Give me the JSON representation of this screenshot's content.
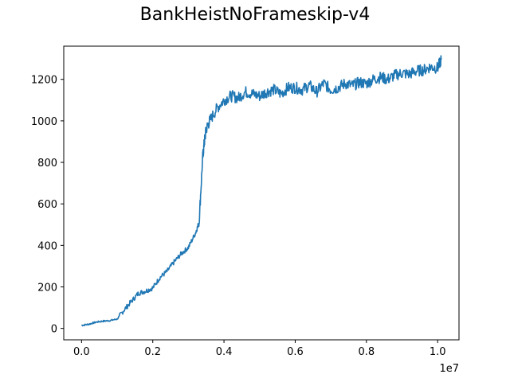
{
  "chart_data": {
    "type": "line",
    "title": "BankHeistNoFrameskip-v4",
    "xlabel": "",
    "ylabel": "",
    "x_offset_label": "1e7",
    "xlim": [
      -0.05,
      1.06
    ],
    "ylim": [
      -55,
      1360
    ],
    "x_ticks": [
      0.0,
      0.2,
      0.4,
      0.6,
      0.8,
      1.0
    ],
    "x_tick_labels": [
      "0.0",
      "0.2",
      "0.4",
      "0.6",
      "0.8",
      "1.0"
    ],
    "y_ticks": [
      0,
      200,
      400,
      600,
      800,
      1000,
      1200
    ],
    "y_tick_labels": [
      "0",
      "200",
      "400",
      "600",
      "800",
      "1000",
      "1200"
    ],
    "grid": false,
    "legend": "none",
    "series": [
      {
        "color": "#1f77b4",
        "x": [
          0.0,
          0.02,
          0.04,
          0.06,
          0.08,
          0.1,
          0.12,
          0.14,
          0.16,
          0.18,
          0.2,
          0.22,
          0.24,
          0.26,
          0.28,
          0.3,
          0.32,
          0.33,
          0.34,
          0.345,
          0.35,
          0.36,
          0.38,
          0.4,
          0.42,
          0.44,
          0.46,
          0.48,
          0.5,
          0.52,
          0.54,
          0.56,
          0.58,
          0.6,
          0.62,
          0.64,
          0.66,
          0.68,
          0.7,
          0.72,
          0.74,
          0.76,
          0.78,
          0.8,
          0.82,
          0.84,
          0.86,
          0.88,
          0.9,
          0.92,
          0.94,
          0.96,
          0.98,
          1.0,
          1.01
        ],
        "y": [
          15,
          20,
          30,
          35,
          38,
          45,
          90,
          130,
          170,
          180,
          195,
          245,
          275,
          320,
          360,
          390,
          460,
          510,
          820,
          900,
          960,
          1000,
          1060,
          1100,
          1120,
          1110,
          1140,
          1130,
          1120,
          1140,
          1150,
          1130,
          1160,
          1160,
          1150,
          1170,
          1140,
          1180,
          1150,
          1160,
          1180,
          1170,
          1185,
          1180,
          1200,
          1210,
          1200,
          1220,
          1230,
          1225,
          1240,
          1245,
          1260,
          1255,
          1295
        ]
      }
    ]
  }
}
